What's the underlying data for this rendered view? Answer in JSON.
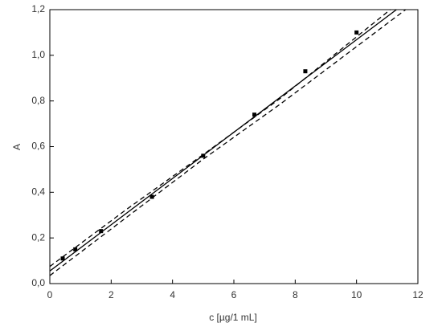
{
  "chart_data": {
    "type": "scatter",
    "xlabel": "c [µg/1 mL]",
    "ylabel": "A",
    "x": [
      0.42,
      0.83,
      1.67,
      3.33,
      5.0,
      6.67,
      8.33,
      10.0
    ],
    "values": [
      0.11,
      0.15,
      0.23,
      0.38,
      0.56,
      0.74,
      0.93,
      1.1
    ],
    "color": "#000000",
    "lines": [
      {
        "x": [
          0,
          11.3
        ],
        "values": [
          0.055,
          1.2
        ],
        "color": "#000000",
        "style": "solid"
      },
      {
        "x": [
          0,
          2.5,
          5,
          7.5,
          11.1
        ],
        "values": [
          0.075,
          0.325,
          0.565,
          0.81,
          1.2
        ],
        "color": "#000000",
        "style": "dashed"
      },
      {
        "x": [
          0,
          2.5,
          5,
          7.5,
          11.6
        ],
        "values": [
          0.035,
          0.29,
          0.545,
          0.785,
          1.2
        ],
        "color": "#000000",
        "style": "dashed"
      }
    ],
    "xlim": [
      0,
      12
    ],
    "xticks": [
      0,
      2,
      4,
      6,
      8,
      10,
      12
    ],
    "ylim": [
      0,
      1.2
    ],
    "yticks": [
      {
        "value": 0,
        "label": "0,0"
      },
      {
        "value": 0.2,
        "label": "0,2"
      },
      {
        "value": 0.4,
        "label": "0,4"
      },
      {
        "value": 0.6,
        "label": "0,6"
      },
      {
        "value": 0.8,
        "label": "0,8"
      },
      {
        "value": 1.0,
        "label": "1,0"
      },
      {
        "value": 1.2,
        "label": "1,2"
      }
    ],
    "grid": false
  }
}
